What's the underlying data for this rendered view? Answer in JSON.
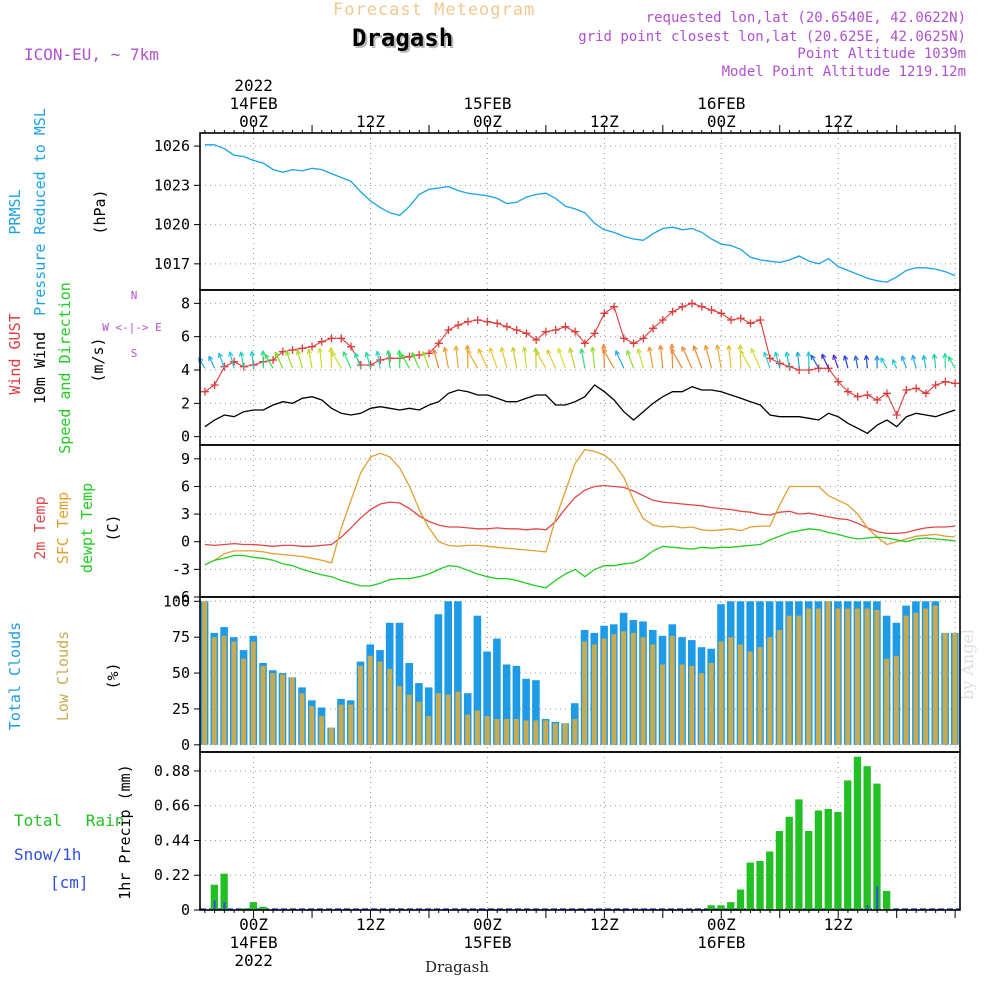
{
  "header": {
    "product": "Forecast Meteogram",
    "station": "Dragash",
    "model": "ICON-EU, ~ 7km",
    "requested": "requested lon,lat (20.6540E, 42.0622N)",
    "gridpoint": "grid point closest lon,lat (20.625E, 42.0625N)",
    "point_alt": "Point Altitude 1039m",
    "model_alt": "Model Point Altitude 1219.12m",
    "footer": "Dragash",
    "watermark": "by Angel"
  },
  "colors": {
    "pressure": "#1aa3e6",
    "gust": "#e03c3c",
    "wind": "#000000",
    "temp2m": "#e04848",
    "sfctemp": "#e0a030",
    "dewpt": "#22cc22",
    "total_cloud": "#1e9be6",
    "low_cloud": "#c8aa50",
    "rain": "#22c022",
    "snow": "#3050e0",
    "label_purple": "#b050d0"
  },
  "time_axis": {
    "top_labels": [
      {
        "t": 0,
        "lines": [
          "2022",
          "14FEB",
          "00Z"
        ]
      },
      {
        "t": 12,
        "lines": [
          "12Z"
        ]
      },
      {
        "t": 24,
        "lines": [
          "15FEB",
          "00Z"
        ]
      },
      {
        "t": 36,
        "lines": [
          "12Z"
        ]
      },
      {
        "t": 48,
        "lines": [
          "16FEB",
          "00Z"
        ]
      },
      {
        "t": 60,
        "lines": [
          "12Z"
        ]
      }
    ],
    "bottom_labels": [
      {
        "t": 0,
        "lines": [
          "00Z",
          "14FEB",
          "2022"
        ]
      },
      {
        "t": 12,
        "lines": [
          "12Z"
        ]
      },
      {
        "t": 24,
        "lines": [
          "00Z",
          "15FEB"
        ]
      },
      {
        "t": 36,
        "lines": [
          "12Z"
        ]
      },
      {
        "t": 48,
        "lines": [
          "00Z",
          "16FEB"
        ]
      },
      {
        "t": 60,
        "lines": [
          "12Z"
        ]
      }
    ]
  },
  "chart_data": [
    {
      "type": "line",
      "id": "pressure",
      "labels": [
        "PRMSL",
        "Pressure Reduced to MSL"
      ],
      "unit": "(hPa)",
      "yticks": [
        1017,
        1020,
        1023,
        1026
      ],
      "ylim": [
        1015,
        1027
      ],
      "x": [
        -5,
        -4,
        -3,
        -2,
        -1,
        0,
        1,
        2,
        3,
        4,
        5,
        6,
        7,
        8,
        9,
        10,
        11,
        12,
        13,
        14,
        15,
        16,
        17,
        18,
        19,
        20,
        21,
        22,
        23,
        24,
        25,
        26,
        27,
        28,
        29,
        30,
        31,
        32,
        33,
        34,
        35,
        36,
        37,
        38,
        39,
        40,
        41,
        42,
        43,
        44,
        45,
        46,
        47,
        48,
        49,
        50,
        51,
        52,
        53,
        54,
        55,
        56,
        57,
        58,
        59,
        60,
        61,
        62,
        63,
        64,
        65,
        66,
        67,
        68,
        69,
        70,
        71,
        72
      ],
      "values": [
        1026.1,
        1026.1,
        1025.8,
        1025.3,
        1025.2,
        1024.9,
        1024.7,
        1024.2,
        1024.0,
        1024.2,
        1024.1,
        1024.3,
        1024.2,
        1023.9,
        1023.6,
        1023.3,
        1022.5,
        1021.8,
        1021.3,
        1020.9,
        1020.7,
        1021.4,
        1022.3,
        1022.7,
        1022.8,
        1022.9,
        1022.6,
        1022.4,
        1022.3,
        1022.2,
        1022.0,
        1021.6,
        1021.7,
        1022.1,
        1022.3,
        1022.4,
        1022.0,
        1021.4,
        1021.2,
        1020.9,
        1020.1,
        1019.6,
        1019.4,
        1019.1,
        1018.9,
        1018.8,
        1019.3,
        1019.7,
        1019.8,
        1019.6,
        1019.7,
        1019.4,
        1018.9,
        1018.5,
        1018.4,
        1018.1,
        1017.5,
        1017.3,
        1017.2,
        1017.1,
        1017.3,
        1017.6,
        1017.2,
        1017.0,
        1017.4,
        1016.8,
        1016.5,
        1016.2,
        1015.9,
        1015.7,
        1015.6,
        1016.0,
        1016.5,
        1016.7,
        1016.7,
        1016.6,
        1016.4,
        1016.1
      ]
    },
    {
      "type": "line",
      "id": "wind",
      "labels": [
        "Wind GUST",
        "10m Wind",
        "Speed and Direction"
      ],
      "unit": "(m/s)",
      "compass": [
        "N",
        "S",
        "W <-|-> E"
      ],
      "yticks": [
        0,
        2,
        4,
        6,
        8
      ],
      "ylim": [
        -0.5,
        8.8
      ],
      "x": [
        -5,
        -4,
        -3,
        -2,
        -1,
        0,
        1,
        2,
        3,
        4,
        5,
        6,
        7,
        8,
        9,
        10,
        11,
        12,
        13,
        14,
        15,
        16,
        17,
        18,
        19,
        20,
        21,
        22,
        23,
        24,
        25,
        26,
        27,
        28,
        29,
        30,
        31,
        32,
        33,
        34,
        35,
        36,
        37,
        38,
        39,
        40,
        41,
        42,
        43,
        44,
        45,
        46,
        47,
        48,
        49,
        50,
        51,
        52,
        53,
        54,
        55,
        56,
        57,
        58,
        59,
        60,
        61,
        62,
        63,
        64,
        65,
        66,
        67,
        68,
        69,
        70,
        71,
        72
      ],
      "gust": [
        2.7,
        3.1,
        4.2,
        4.5,
        4.2,
        4.3,
        4.5,
        4.6,
        5.1,
        5.2,
        5.3,
        5.4,
        5.7,
        5.9,
        5.9,
        5.4,
        4.3,
        4.3,
        4.6,
        4.7,
        4.7,
        4.8,
        4.9,
        5.0,
        5.6,
        6.4,
        6.7,
        6.9,
        7.0,
        6.9,
        6.8,
        6.6,
        6.4,
        6.2,
        5.8,
        6.3,
        6.4,
        6.6,
        6.3,
        5.6,
        6.2,
        7.4,
        7.8,
        5.9,
        5.6,
        5.9,
        6.5,
        7.0,
        7.5,
        7.8,
        8.0,
        7.8,
        7.6,
        7.4,
        7.0,
        7.1,
        6.8,
        7.0,
        4.7,
        4.4,
        4.2,
        4.0,
        4.0,
        4.1,
        4.1,
        3.3,
        2.7,
        2.4,
        2.5,
        2.2,
        2.6,
        1.3,
        2.8,
        2.9,
        2.6,
        3.1,
        3.3,
        3.2
      ],
      "speed": [
        0.6,
        1.0,
        1.3,
        1.2,
        1.5,
        1.6,
        1.6,
        1.9,
        2.1,
        2.0,
        2.3,
        2.4,
        2.2,
        1.7,
        1.4,
        1.3,
        1.4,
        1.7,
        1.8,
        1.7,
        1.6,
        1.7,
        1.6,
        1.9,
        2.1,
        2.6,
        2.8,
        2.7,
        2.5,
        2.5,
        2.3,
        2.1,
        2.1,
        2.3,
        2.5,
        2.5,
        1.9,
        1.9,
        2.1,
        2.4,
        3.1,
        2.7,
        2.2,
        1.5,
        1.0,
        1.5,
        2.0,
        2.4,
        2.7,
        2.7,
        3.0,
        2.8,
        2.8,
        2.7,
        2.5,
        2.3,
        2.1,
        1.9,
        1.3,
        1.2,
        1.2,
        1.2,
        1.1,
        1.0,
        1.4,
        1.2,
        0.8,
        0.5,
        0.2,
        0.7,
        1.0,
        0.6,
        1.2,
        1.4,
        1.3,
        1.2,
        1.4,
        1.6
      ],
      "arrow_colors": [
        "#22aaee",
        "#22aaee",
        "#22bbee",
        "#22ccdd",
        "#22ccbb",
        "#22cccc",
        "#22dd88",
        "#33dd55",
        "#77dd22",
        "#99dd22",
        "#aadd22",
        "#bbdd22",
        "#ccdd22",
        "#ddcc22",
        "#ccdd33",
        "#33dd77",
        "#22ddaa",
        "#22dd99",
        "#22ddcc",
        "#22dd77",
        "#22ee55",
        "#33ee44",
        "#55dd33",
        "#99dd22",
        "#ee8833",
        "#ee9933",
        "#eeaa33",
        "#ee9933",
        "#eeaa33",
        "#eebb33",
        "#eecc33",
        "#ddcc33",
        "#cccc33",
        "#bbdd33",
        "#aadd33",
        "#ddcc33",
        "#ddcc33",
        "#dddd33",
        "#cccc33",
        "#33dd77",
        "#99dd33",
        "#ee8833",
        "#ee8833",
        "#22aaee",
        "#88dd33",
        "#ccdd33",
        "#ee9933",
        "#ee8833",
        "#ee8833",
        "#ee8833",
        "#ee8833",
        "#ee8833",
        "#ee9933",
        "#eeaa33",
        "#eebb33",
        "#ddcc33",
        "#ccdd33",
        "#ccdd33",
        "#33cccc",
        "#22cccc",
        "#22cccc",
        "#22aacc",
        "#22cccc",
        "#2266dd",
        "#3333dd",
        "#5522cc",
        "#2244dd",
        "#2266dd",
        "#2244dd",
        "#2288dd",
        "#22cccc",
        "#22cccc",
        "#22aaee",
        "#22aaee",
        "#22bbcc",
        "#22ccaa",
        "#22ddaa",
        "#22dd88"
      ]
    },
    {
      "type": "line",
      "id": "temperature",
      "labels": [
        "2m Temp",
        "SFC Temp",
        "dewpt Temp"
      ],
      "unit": "(C)",
      "yticks": [
        -6,
        -3,
        0,
        3,
        6,
        9
      ],
      "ylim": [
        -6,
        10.5
      ],
      "x": [
        -5,
        -4,
        -3,
        -2,
        -1,
        0,
        1,
        2,
        3,
        4,
        5,
        6,
        7,
        8,
        9,
        10,
        11,
        12,
        13,
        14,
        15,
        16,
        17,
        18,
        19,
        20,
        21,
        22,
        23,
        24,
        25,
        26,
        27,
        28,
        29,
        30,
        31,
        32,
        33,
        34,
        35,
        36,
        37,
        38,
        39,
        40,
        41,
        42,
        43,
        44,
        45,
        46,
        47,
        48,
        49,
        50,
        51,
        52,
        53,
        54,
        55,
        56,
        57,
        58,
        59,
        60,
        61,
        62,
        63,
        64,
        65,
        66,
        67,
        68,
        69,
        70,
        71,
        72
      ],
      "t2m": [
        -0.3,
        -0.4,
        -0.3,
        -0.2,
        -0.3,
        -0.3,
        -0.4,
        -0.5,
        -0.4,
        -0.4,
        -0.5,
        -0.5,
        -0.4,
        -0.3,
        0.5,
        1.5,
        2.6,
        3.5,
        4.1,
        4.3,
        4.2,
        3.6,
        2.8,
        2.2,
        1.8,
        1.6,
        1.6,
        1.5,
        1.4,
        1.4,
        1.5,
        1.4,
        1.4,
        1.3,
        1.4,
        1.3,
        2.2,
        3.6,
        4.8,
        5.6,
        6.0,
        6.1,
        6.0,
        5.9,
        5.5,
        5.0,
        4.5,
        4.3,
        4.2,
        4.1,
        4.0,
        3.9,
        3.7,
        3.6,
        3.5,
        3.3,
        3.2,
        3.0,
        2.9,
        3.2,
        3.3,
        3.0,
        3.1,
        2.9,
        2.7,
        2.5,
        2.4,
        2.0,
        1.5,
        1.1,
        0.9,
        0.9,
        1.0,
        1.3,
        1.5,
        1.6,
        1.6,
        1.7
      ],
      "sfc": [
        -2.5,
        -2.0,
        -1.3,
        -1.0,
        -1.0,
        -1.0,
        -1.1,
        -1.3,
        -1.4,
        -1.5,
        -1.6,
        -1.8,
        -2.0,
        -2.3,
        1.5,
        4.5,
        7.5,
        9.2,
        9.6,
        9.2,
        8.0,
        6.0,
        3.5,
        1.5,
        0.0,
        -0.4,
        -0.5,
        -0.4,
        -0.4,
        -0.5,
        -0.6,
        -0.7,
        -0.8,
        -0.9,
        -1.0,
        -1.1,
        2.5,
        5.5,
        8.5,
        10.0,
        9.8,
        9.4,
        8.5,
        7.0,
        4.5,
        2.5,
        1.8,
        1.6,
        1.7,
        1.5,
        1.6,
        1.3,
        1.2,
        1.3,
        1.4,
        1.2,
        1.6,
        1.7,
        1.7,
        4.0,
        6.0,
        6.0,
        6.0,
        6.0,
        5.0,
        4.5,
        4.0,
        3.0,
        1.5,
        0.5,
        -0.3,
        0.0,
        0.3,
        0.6,
        0.7,
        0.8,
        0.6,
        0.5
      ],
      "dewpt": [
        -2.5,
        -2.0,
        -1.8,
        -1.5,
        -1.5,
        -1.7,
        -1.8,
        -2.0,
        -2.4,
        -2.6,
        -3.0,
        -3.3,
        -3.6,
        -3.8,
        -4.2,
        -4.5,
        -4.8,
        -4.8,
        -4.5,
        -4.1,
        -4.0,
        -4.0,
        -3.8,
        -3.5,
        -3.0,
        -2.6,
        -2.7,
        -3.1,
        -3.5,
        -3.8,
        -4.0,
        -4.0,
        -4.2,
        -4.5,
        -4.8,
        -5.0,
        -4.2,
        -3.5,
        -3.0,
        -3.8,
        -3.0,
        -2.6,
        -2.6,
        -2.4,
        -2.3,
        -1.8,
        -1.0,
        -0.5,
        -0.6,
        -0.7,
        -0.8,
        -0.6,
        -0.7,
        -0.6,
        -0.6,
        -0.5,
        -0.4,
        -0.3,
        0.2,
        0.6,
        1.0,
        1.2,
        1.4,
        1.3,
        1.0,
        0.8,
        0.5,
        0.3,
        0.4,
        0.5,
        0.4,
        0.2,
        0.0,
        0.3,
        0.4,
        0.3,
        0.2,
        0.1
      ]
    },
    {
      "type": "bar",
      "id": "clouds",
      "labels": [
        "Total Clouds",
        "Low Clouds"
      ],
      "unit": "(%)",
      "yticks": [
        0,
        25,
        50,
        75,
        100
      ],
      "ylim": [
        -5,
        103
      ],
      "x": [
        -5,
        -4,
        -3,
        -2,
        -1,
        0,
        1,
        2,
        3,
        4,
        5,
        6,
        7,
        8,
        9,
        10,
        11,
        12,
        13,
        14,
        15,
        16,
        17,
        18,
        19,
        20,
        21,
        22,
        23,
        24,
        25,
        26,
        27,
        28,
        29,
        30,
        31,
        32,
        33,
        34,
        35,
        36,
        37,
        38,
        39,
        40,
        41,
        42,
        43,
        44,
        45,
        46,
        47,
        48,
        49,
        50,
        51,
        52,
        53,
        54,
        55,
        56,
        57,
        58,
        59,
        60,
        61,
        62,
        63,
        64,
        65,
        66,
        67,
        68,
        69,
        70,
        71,
        72
      ],
      "total": [
        100,
        78,
        82,
        75,
        66,
        76,
        57,
        52,
        50,
        47,
        40,
        31,
        26,
        12,
        32,
        31,
        58,
        70,
        66,
        85,
        85,
        57,
        43,
        40,
        91,
        100,
        100,
        36,
        90,
        65,
        74,
        56,
        55,
        46,
        45,
        18,
        16,
        15,
        29,
        80,
        78,
        83,
        84,
        92,
        87,
        86,
        80,
        76,
        84,
        75,
        73,
        68,
        67,
        98,
        100,
        100,
        100,
        100,
        100,
        100,
        100,
        100,
        100,
        100,
        100,
        100,
        100,
        100,
        100,
        100,
        90,
        85,
        97,
        100,
        100,
        100,
        78,
        78
      ],
      "low": [
        100,
        75,
        76,
        72,
        60,
        72,
        55,
        50,
        49,
        47,
        36,
        27,
        20,
        12,
        28,
        28,
        55,
        62,
        58,
        53,
        41,
        35,
        30,
        20,
        36,
        35,
        37,
        21,
        24,
        20,
        18,
        18,
        18,
        17,
        17,
        17,
        15,
        15,
        18,
        72,
        70,
        74,
        77,
        79,
        78,
        75,
        70,
        56,
        76,
        56,
        55,
        50,
        57,
        72,
        75,
        70,
        65,
        68,
        75,
        80,
        90,
        90,
        95,
        95,
        100,
        95,
        95,
        95,
        95,
        94,
        60,
        62,
        90,
        92,
        95,
        97,
        78,
        78
      ]
    },
    {
      "type": "bar",
      "id": "precip",
      "labels": [
        "Total Rain",
        "Snow/1h",
        "[cm]"
      ],
      "unit": "1hr Precip (mm)",
      "yticks": [
        0,
        0.22,
        0.44,
        0.66,
        0.88
      ],
      "ylim": [
        0,
        1.0
      ],
      "x": [
        -4,
        -3,
        -1,
        0,
        1,
        47,
        48,
        49,
        50,
        51,
        52,
        53,
        54,
        55,
        56,
        57,
        58,
        59,
        60,
        61,
        62,
        63,
        64,
        65,
        66,
        67
      ],
      "rain": [
        0.16,
        0.23,
        0.01,
        0.05,
        0.02,
        0.03,
        0.03,
        0.05,
        0.13,
        0.3,
        0.31,
        0.37,
        0.5,
        0.59,
        0.7,
        0.5,
        0.63,
        0.64,
        0.62,
        0.82,
        0.97,
        0.91,
        0.8,
        0.12,
        0,
        0
      ],
      "snow": [
        0.06,
        0.05,
        0,
        0,
        0,
        0,
        0,
        0,
        0,
        0,
        0,
        0,
        0,
        0,
        0,
        0,
        0,
        0,
        0,
        0,
        0,
        0.03,
        0.15,
        0,
        0,
        0
      ]
    }
  ]
}
